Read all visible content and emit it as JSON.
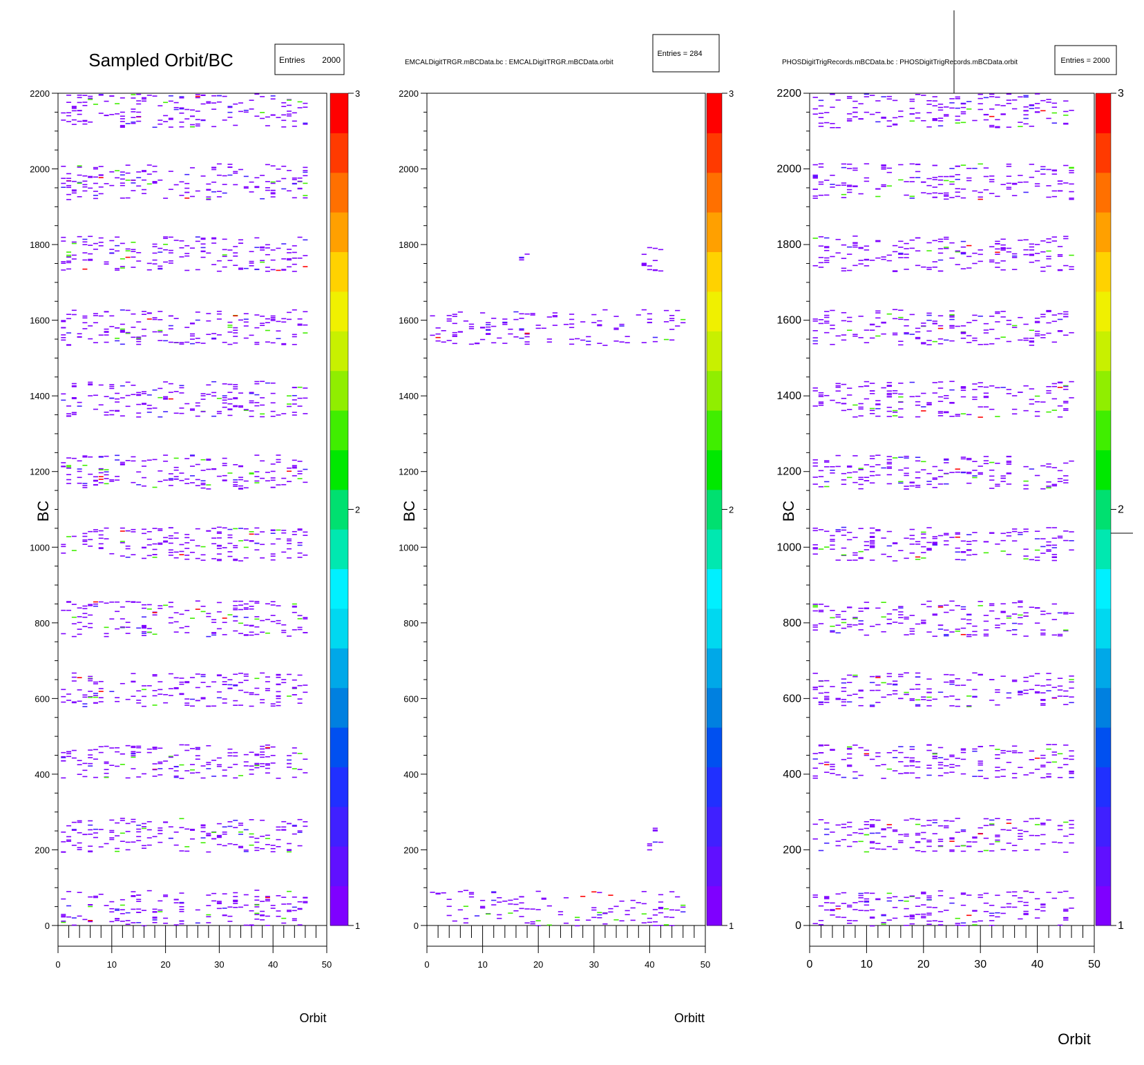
{
  "chart_data": [
    {
      "type": "heatmap",
      "title": "Sampled Orbit/BC",
      "stats_label": "Entries",
      "stats_value": "2000",
      "xlabel": "Orbit",
      "ylabel": "BC",
      "xlim": [
        0,
        50
      ],
      "ylim": [
        0,
        2200
      ],
      "x_ticks": [
        "0",
        "10",
        "20",
        "30",
        "40",
        "50"
      ],
      "y_ticks": [
        "0",
        "200",
        "400",
        "600",
        "800",
        "1000",
        "1200",
        "1400",
        "1600",
        "1800",
        "2000",
        "2200"
      ],
      "zlim": [
        1,
        3
      ],
      "z_ticks": [
        "1",
        "2",
        "3"
      ],
      "bands": [
        [
          0,
          95
        ],
        [
          195,
          285
        ],
        [
          390,
          480
        ],
        [
          580,
          670
        ],
        [
          765,
          860
        ],
        [
          965,
          1055
        ],
        [
          1155,
          1245
        ],
        [
          1345,
          1440
        ],
        [
          1535,
          1630
        ],
        [
          1730,
          1825
        ],
        [
          1920,
          2015
        ],
        [
          2110,
          2200
        ]
      ],
      "orbit_range": [
        1,
        46
      ],
      "entries": 2000,
      "grid": false
    },
    {
      "type": "heatmap",
      "title": "EMCALDigitTRGR.mBCData.bc : EMCALDigitTRGR.mBCData.orbit",
      "stats_label": "Entries = 284",
      "stats_value": "",
      "xlabel": "Orbitt",
      "ylabel": "BC",
      "xlim": [
        0,
        50
      ],
      "ylim": [
        0,
        2200
      ],
      "x_ticks": [
        "0",
        "10",
        "20",
        "30",
        "40",
        "50"
      ],
      "y_ticks": [
        "0",
        "200",
        "400",
        "600",
        "800",
        "1000",
        "1200",
        "1400",
        "1600",
        "1800",
        "2000",
        "2200"
      ],
      "zlim": [
        1,
        3
      ],
      "z_ticks": [
        "1",
        "2",
        "3"
      ],
      "clusters": [
        {
          "x": [
            1,
            46
          ],
          "y": [
            0,
            95
          ],
          "n": 120
        },
        {
          "x": [
            1,
            46
          ],
          "y": [
            1535,
            1630
          ],
          "n": 130
        },
        {
          "x": [
            17,
            18
          ],
          "y": [
            1740,
            1790
          ],
          "n": 4
        },
        {
          "x": [
            39,
            42
          ],
          "y": [
            1725,
            1795
          ],
          "n": 14
        },
        {
          "x": [
            40,
            42
          ],
          "y": [
            200,
            265
          ],
          "n": 8
        }
      ],
      "entries": 284,
      "grid": false
    },
    {
      "type": "heatmap",
      "title": "PHOSDigitTrigRecords.mBCData.bc : PHOSDigitTrigRecords.mBCData.orbit",
      "stats_label": "Entries = 2000",
      "stats_value": "",
      "xlabel": "Orbit",
      "ylabel": "BC",
      "xlim": [
        0,
        50
      ],
      "ylim": [
        0,
        2200
      ],
      "x_ticks": [
        "0",
        "10",
        "20",
        "30",
        "40",
        "50"
      ],
      "y_ticks": [
        "0",
        "200",
        "400",
        "600",
        "800",
        "1000",
        "1200",
        "1400",
        "1600",
        "1800",
        "2000",
        "2200"
      ],
      "zlim": [
        1,
        3
      ],
      "z_ticks": [
        "1",
        "2",
        "3"
      ],
      "bands": [
        [
          0,
          95
        ],
        [
          195,
          285
        ],
        [
          390,
          480
        ],
        [
          580,
          670
        ],
        [
          765,
          860
        ],
        [
          965,
          1055
        ],
        [
          1155,
          1245
        ],
        [
          1345,
          1440
        ],
        [
          1535,
          1630
        ],
        [
          1730,
          1825
        ],
        [
          1920,
          2015
        ],
        [
          2110,
          2200
        ]
      ],
      "orbit_range": [
        1,
        46
      ],
      "entries": 2000,
      "grid": false
    }
  ],
  "palette": [
    "#7f00ff",
    "#6010ff",
    "#4020ff",
    "#2030ff",
    "#0050f0",
    "#0080e0",
    "#00a8e8",
    "#00d8f0",
    "#00f0ff",
    "#00e8b0",
    "#00e070",
    "#00e800",
    "#40ee00",
    "#90ee00",
    "#c8f000",
    "#f0f000",
    "#ffd200",
    "#ffa000",
    "#ff7000",
    "#ff3a00",
    "#ff0000"
  ]
}
